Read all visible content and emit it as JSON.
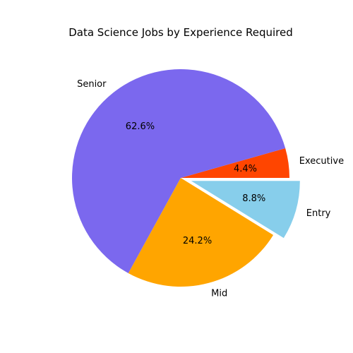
{
  "chart_data": {
    "type": "pie",
    "title": "Data Science Jobs by Experience Required",
    "start_angle_deg": 0,
    "direction": "counterclockwise",
    "slices": [
      {
        "label": "Executive",
        "value": 4.4,
        "display": "4.4%",
        "color": "#FF4500",
        "explode": 0
      },
      {
        "label": "Senior",
        "value": 62.6,
        "display": "62.6%",
        "color": "#7B68EE",
        "explode": 0
      },
      {
        "label": "Mid",
        "value": 24.2,
        "display": "24.2%",
        "color": "#FFA500",
        "explode": 0
      },
      {
        "label": "Entry",
        "value": 8.8,
        "display": "8.8%",
        "color": "#87CEEB",
        "explode": 0.1
      }
    ]
  }
}
